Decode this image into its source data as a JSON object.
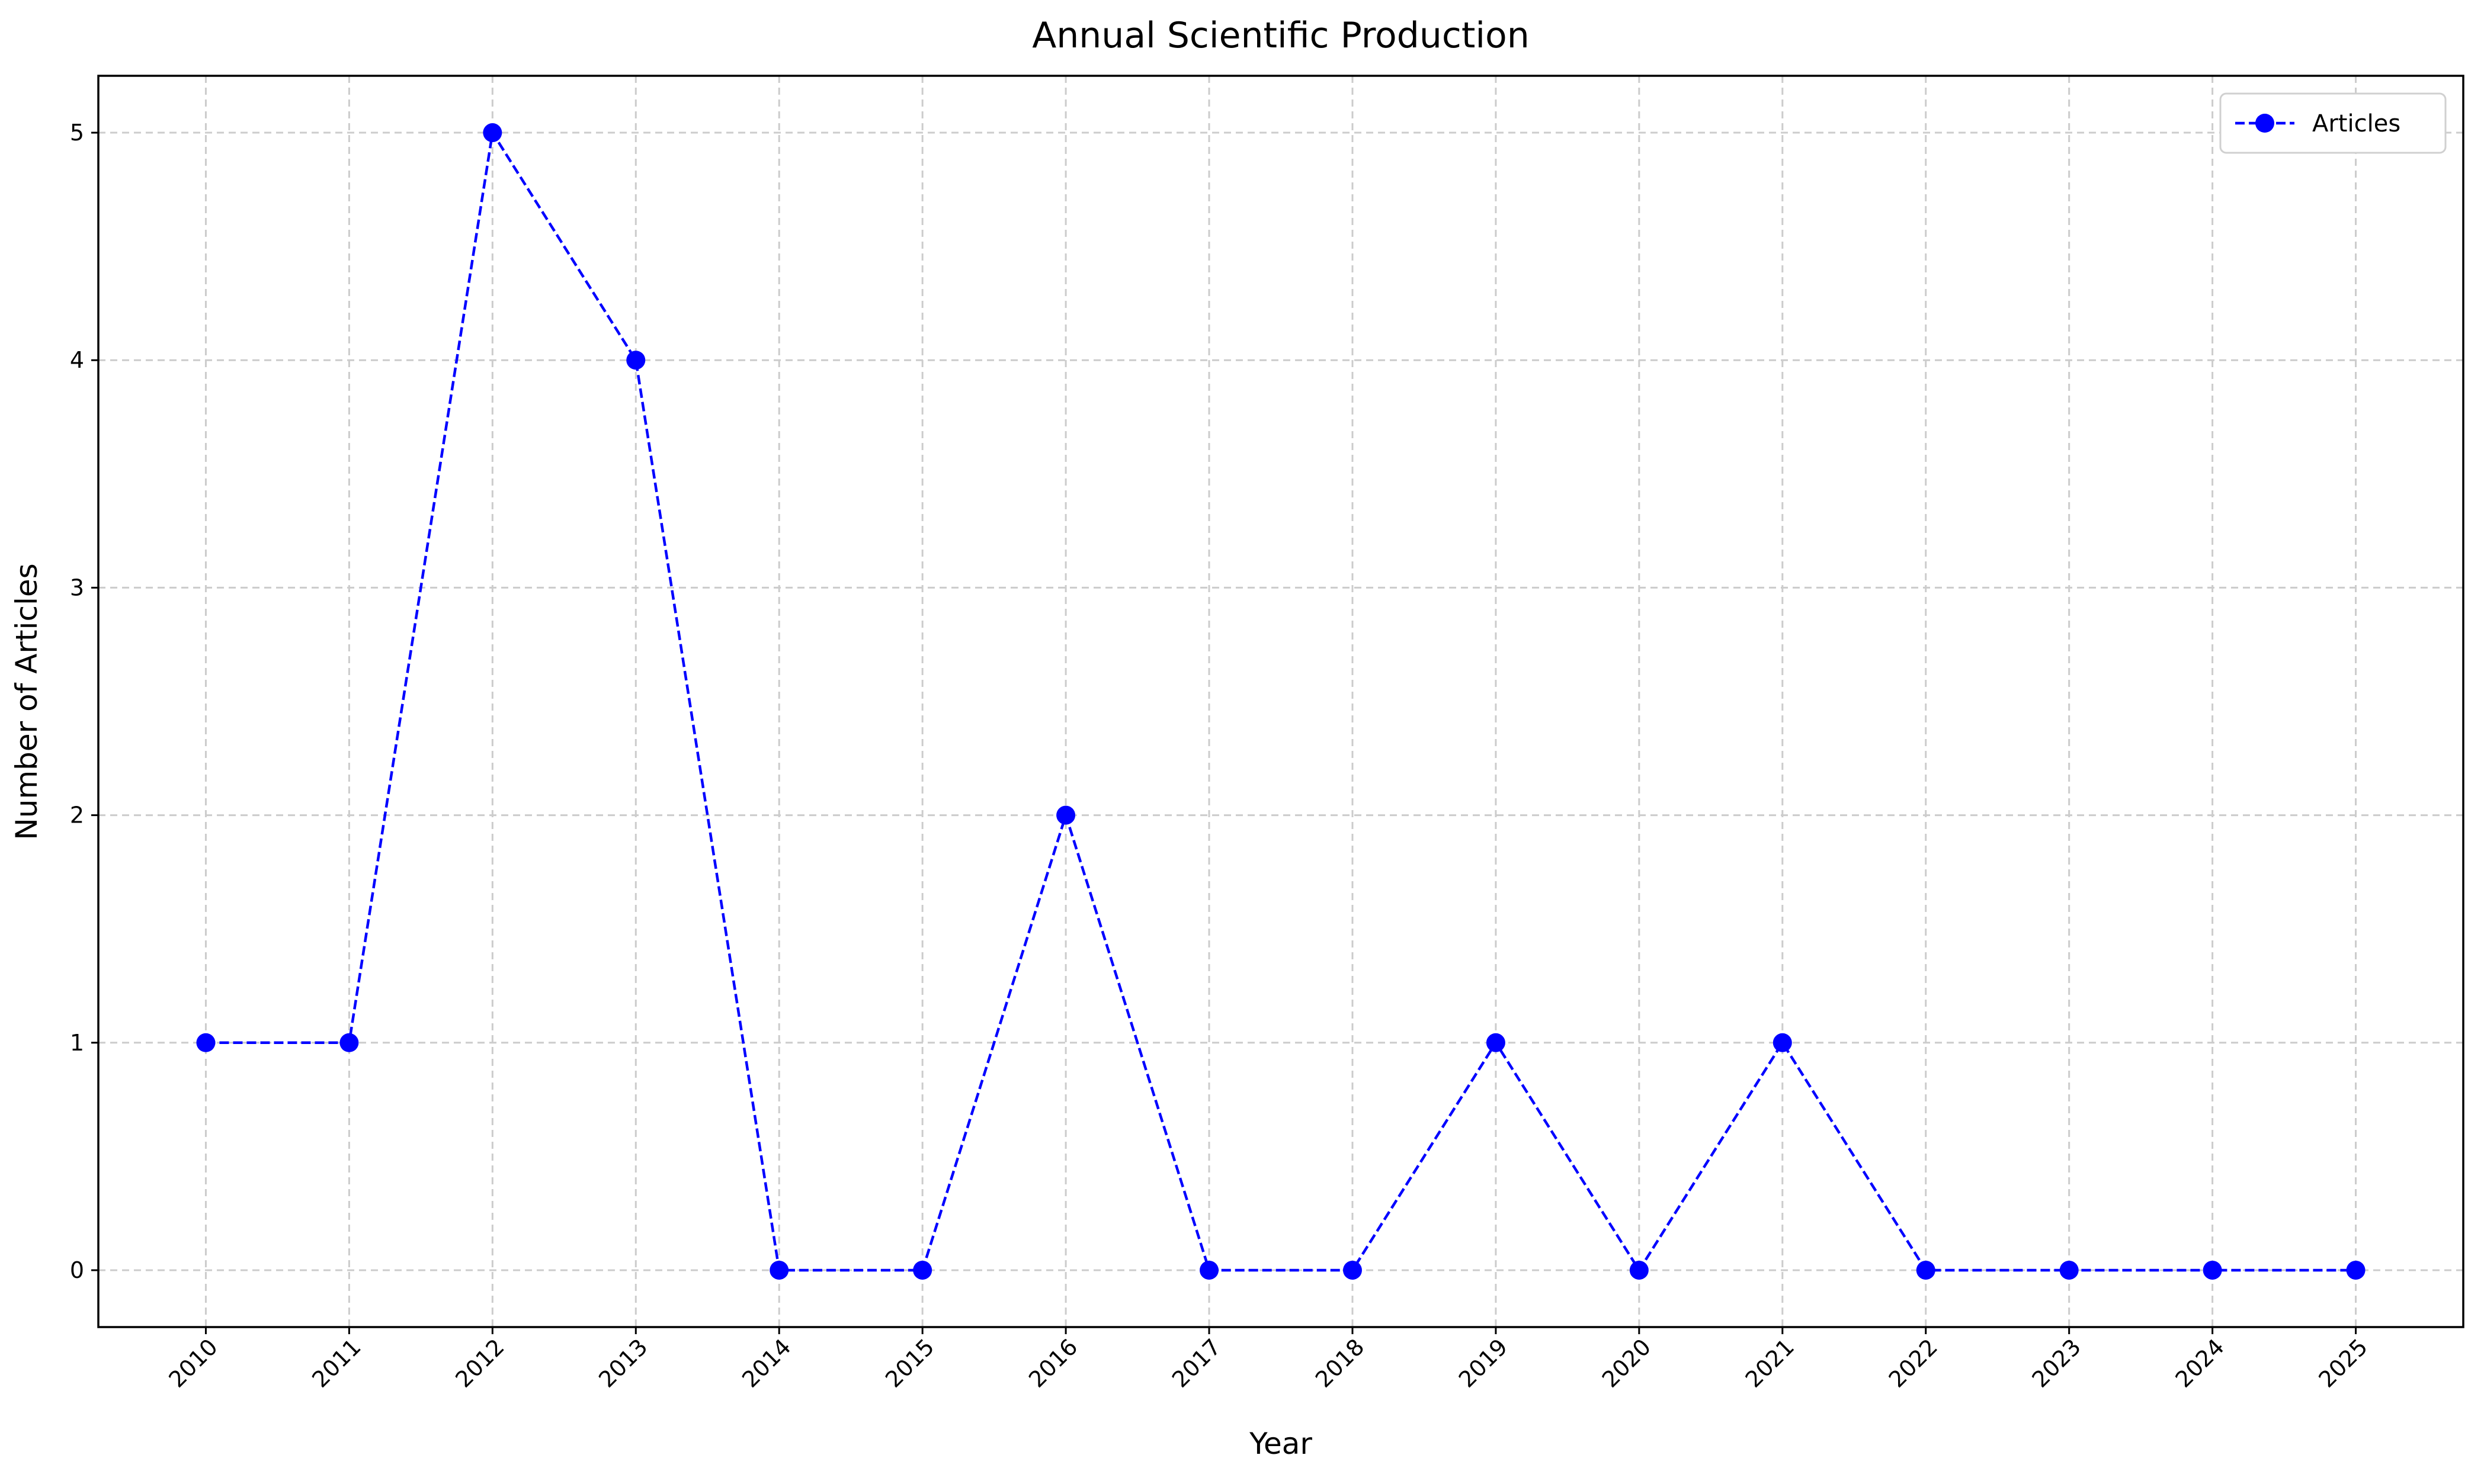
{
  "chart_data": {
    "type": "line",
    "title": "Annual Scientific Production",
    "x_label": "Year",
    "y_label": "Number of Articles",
    "x": [
      2010,
      2011,
      2012,
      2013,
      2014,
      2015,
      2016,
      2017,
      2018,
      2019,
      2020,
      2021,
      2022,
      2023,
      2024,
      2025
    ],
    "series": [
      {
        "name": "Articles",
        "color": "#0000ff",
        "values": [
          1,
          1,
          5,
          4,
          0,
          0,
          2,
          0,
          0,
          1,
          0,
          1,
          0,
          0,
          0,
          0
        ]
      }
    ],
    "xlim": [
      2009.25,
      2025.75
    ],
    "xticks": [
      2010,
      2011,
      2012,
      2013,
      2014,
      2015,
      2016,
      2017,
      2018,
      2019,
      2020,
      2021,
      2022,
      2023,
      2024,
      2025
    ],
    "ylim": [
      -0.25,
      5.25
    ],
    "yticks": [
      0,
      1,
      2,
      3,
      4,
      5
    ],
    "grid": true,
    "legend": "upper right"
  }
}
